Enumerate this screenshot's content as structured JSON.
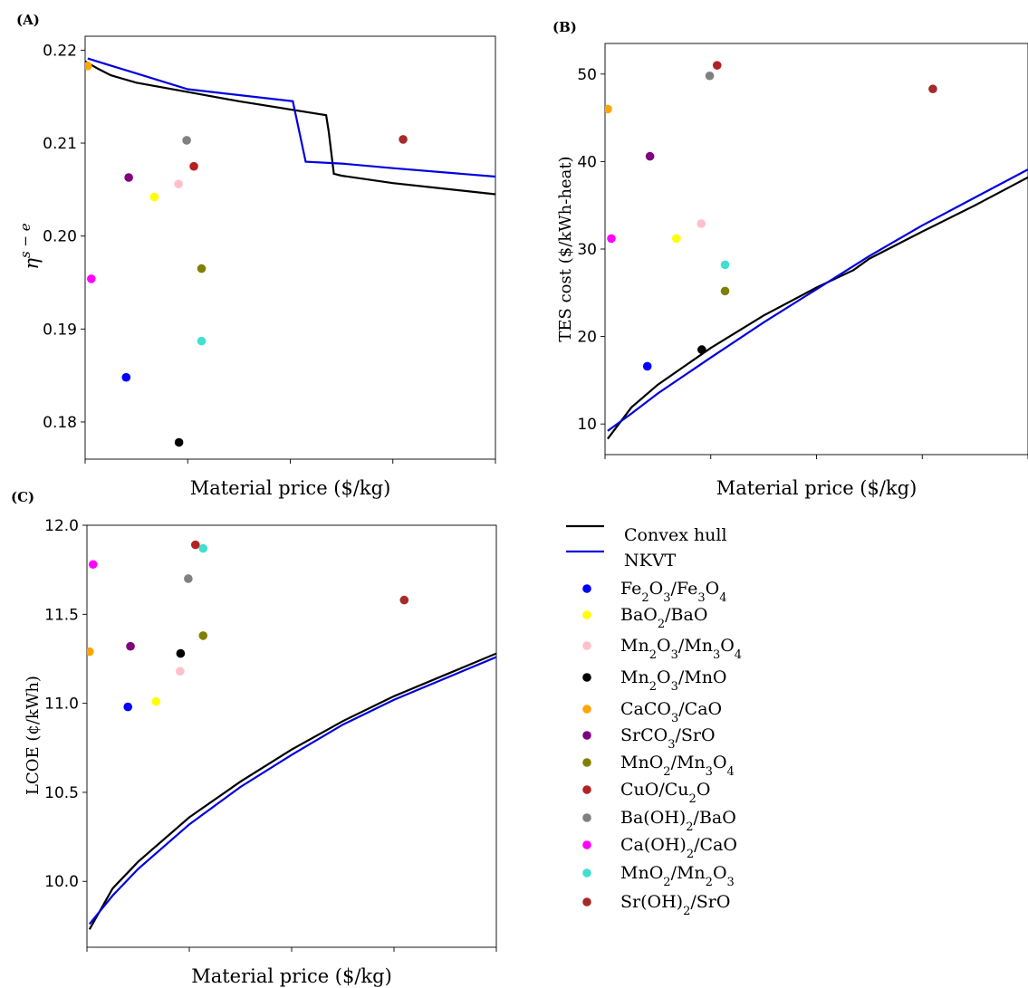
{
  "legend": {
    "lines": [
      {
        "label": "Convex hull",
        "color": "#000000"
      },
      {
        "label": "NKVT",
        "color": "#0000dd"
      }
    ],
    "materials": [
      {
        "key": "fe2o3",
        "parts": [
          [
            "Fe",
            ""
          ],
          [
            "2",
            "s"
          ],
          [
            "O",
            ""
          ],
          [
            "3",
            "s"
          ],
          [
            "/Fe",
            ""
          ],
          [
            "3",
            "s"
          ],
          [
            "O",
            ""
          ],
          [
            "4",
            "s"
          ]
        ],
        "color": "#0000ff"
      },
      {
        "key": "bao2",
        "parts": [
          [
            "BaO",
            ""
          ],
          [
            "2",
            "s"
          ],
          [
            "/BaO",
            ""
          ]
        ],
        "color": "#ffff00"
      },
      {
        "key": "mn2o3_mn3o4",
        "parts": [
          [
            "Mn",
            ""
          ],
          [
            "2",
            "s"
          ],
          [
            "O",
            ""
          ],
          [
            "3",
            "s"
          ],
          [
            "/Mn",
            ""
          ],
          [
            "3",
            "s"
          ],
          [
            "O",
            ""
          ],
          [
            "4",
            "s"
          ]
        ],
        "color": "#ffc0cb"
      },
      {
        "key": "mn2o3_mno",
        "parts": [
          [
            "Mn",
            ""
          ],
          [
            "2",
            "s"
          ],
          [
            "O",
            ""
          ],
          [
            "3",
            "s"
          ],
          [
            "/MnO",
            ""
          ]
        ],
        "color": "#000000"
      },
      {
        "key": "caco3",
        "parts": [
          [
            "CaC",
            ""
          ],
          [
            "O",
            ""
          ],
          [
            "3",
            "s"
          ],
          [
            "/CaO",
            ""
          ]
        ],
        "color": "#ffa500"
      },
      {
        "key": "srco3",
        "parts": [
          [
            "SrC",
            ""
          ],
          [
            "O",
            ""
          ],
          [
            "3",
            "s"
          ],
          [
            "/SrO",
            ""
          ]
        ],
        "color": "#800080"
      },
      {
        "key": "mno2_mn3o4",
        "parts": [
          [
            "MnO",
            ""
          ],
          [
            "2",
            "s"
          ],
          [
            "/Mn",
            ""
          ],
          [
            "3",
            "s"
          ],
          [
            "O",
            ""
          ],
          [
            "4",
            "s"
          ]
        ],
        "color": "#808000"
      },
      {
        "key": "cuo",
        "parts": [
          [
            "CuO/Cu",
            ""
          ],
          [
            "2",
            "s"
          ],
          [
            "O",
            ""
          ]
        ],
        "color": "#b22222"
      },
      {
        "key": "baoh2",
        "parts": [
          [
            "Ba(OH)",
            ""
          ],
          [
            "2",
            "s"
          ],
          [
            "/BaO",
            ""
          ]
        ],
        "color": "#808080"
      },
      {
        "key": "caoh2",
        "parts": [
          [
            "Ca(OH)",
            ""
          ],
          [
            "2",
            "s"
          ],
          [
            "/CaO",
            ""
          ]
        ],
        "color": "#ff00ff"
      },
      {
        "key": "mno2_mn2o3",
        "parts": [
          [
            "MnO",
            ""
          ],
          [
            "2",
            "s"
          ],
          [
            "/Mn",
            ""
          ],
          [
            "2",
            "s"
          ],
          [
            "O",
            ""
          ],
          [
            "3",
            "s"
          ]
        ],
        "color": "#40e0d0"
      },
      {
        "key": "sroh2",
        "parts": [
          [
            "Sr(OH)",
            ""
          ],
          [
            "2",
            "s"
          ],
          [
            "/SrO",
            ""
          ]
        ],
        "color": "#a52a2a"
      }
    ]
  },
  "chart_data": [
    {
      "panel": "(A)",
      "type": "scatter",
      "xlabel": "Material price ($/kg)",
      "ylabel": "η^{s−e}",
      "xlim": [
        0,
        8
      ],
      "ylim": [
        0.176,
        0.2215
      ],
      "x_tick_labels_shown": false,
      "yticks": [
        0.18,
        0.19,
        0.2,
        0.21,
        0.22
      ],
      "ytick_labels": [
        "0.18",
        "0.19",
        "0.20",
        "0.21",
        "0.22"
      ],
      "lines": [
        {
          "name": "Convex hull",
          "color": "#000000",
          "x": [
            0.0,
            0.25,
            0.5,
            1.0,
            2.0,
            3.0,
            4.7,
            4.75,
            4.85,
            5.0,
            6.0,
            8.0
          ],
          "y": [
            0.2188,
            0.218,
            0.2173,
            0.2165,
            0.2155,
            0.2145,
            0.213,
            0.2112,
            0.2067,
            0.2065,
            0.2057,
            0.2045
          ]
        },
        {
          "name": "NKVT",
          "color": "#0000dd",
          "x": [
            0.05,
            1.0,
            2.0,
            4.05,
            4.3,
            5.0,
            6.0,
            8.0
          ],
          "y": [
            0.2191,
            0.2175,
            0.2158,
            0.2145,
            0.208,
            0.2078,
            0.2073,
            0.2064
          ]
        },
        {
          "name": "",
          "color": "#000000",
          "x": [],
          "y": []
        }
      ],
      "points": [
        {
          "key": "fe2o3",
          "x": 0.8,
          "y": 0.1848
        },
        {
          "key": "bao2",
          "x": 1.35,
          "y": 0.2042
        },
        {
          "key": "mn2o3_mn3o4",
          "x": 1.82,
          "y": 0.2056
        },
        {
          "key": "mn2o3_mno",
          "x": 1.83,
          "y": 0.1778
        },
        {
          "key": "caco3",
          "x": 0.05,
          "y": 0.2183
        },
        {
          "key": "srco3",
          "x": 0.85,
          "y": 0.2063
        },
        {
          "key": "mno2_mn3o4",
          "x": 2.27,
          "y": 0.1965
        },
        {
          "key": "cuo",
          "x": 2.12,
          "y": 0.2075
        },
        {
          "key": "baoh2",
          "x": 1.98,
          "y": 0.2103
        },
        {
          "key": "caoh2",
          "x": 0.12,
          "y": 0.1954
        },
        {
          "key": "mno2_mn2o3",
          "x": 2.27,
          "y": 0.1887
        },
        {
          "key": "sroh2",
          "x": 6.2,
          "y": 0.2104
        }
      ]
    },
    {
      "panel": "(B)",
      "type": "scatter",
      "xlabel": "Material price ($/kg)",
      "ylabel": "TES cost ($/kWh-heat)",
      "xlim": [
        0,
        8
      ],
      "ylim": [
        6.5,
        53.5
      ],
      "x_tick_labels_shown": false,
      "yticks": [
        10,
        20,
        30,
        40,
        50
      ],
      "ytick_labels": [
        "10",
        "20",
        "30",
        "40",
        "50"
      ],
      "lines": [
        {
          "name": "Convex hull",
          "color": "#000000",
          "x": [
            0.05,
            0.5,
            1.0,
            2.0,
            3.0,
            4.0,
            4.7,
            5.0,
            6.0,
            7.0,
            8.0
          ],
          "y": [
            8.3,
            11.9,
            14.5,
            18.7,
            22.4,
            25.6,
            27.6,
            28.9,
            32.0,
            35.0,
            38.2
          ]
        },
        {
          "name": "NKVT",
          "color": "#0000dd",
          "x": [
            0.05,
            0.5,
            1.0,
            2.0,
            3.0,
            4.0,
            5.0,
            6.0,
            7.0,
            8.0
          ],
          "y": [
            9.2,
            11.2,
            13.5,
            17.6,
            21.6,
            25.4,
            29.2,
            32.7,
            35.9,
            39.1
          ]
        }
      ],
      "points": [
        {
          "key": "fe2o3",
          "x": 0.8,
          "y": 16.6
        },
        {
          "key": "bao2",
          "x": 1.35,
          "y": 31.2
        },
        {
          "key": "mn2o3_mn3o4",
          "x": 1.82,
          "y": 32.9
        },
        {
          "key": "mn2o3_mno",
          "x": 1.83,
          "y": 18.5
        },
        {
          "key": "caco3",
          "x": 0.05,
          "y": 46.0
        },
        {
          "key": "srco3",
          "x": 0.85,
          "y": 40.6
        },
        {
          "key": "mno2_mn3o4",
          "x": 2.27,
          "y": 25.2
        },
        {
          "key": "cuo",
          "x": 2.12,
          "y": 51.0
        },
        {
          "key": "baoh2",
          "x": 1.98,
          "y": 49.8
        },
        {
          "key": "caoh2",
          "x": 0.12,
          "y": 31.2
        },
        {
          "key": "mno2_mn2o3",
          "x": 2.27,
          "y": 28.2
        },
        {
          "key": "sroh2",
          "x": 6.2,
          "y": 48.3
        }
      ]
    },
    {
      "panel": "(C)",
      "type": "scatter",
      "xlabel": "Material price ($/kg)",
      "ylabel": "LCOE (¢/kWh)",
      "xlim": [
        0,
        8
      ],
      "ylim": [
        9.63,
        12.0
      ],
      "x_tick_labels_shown": false,
      "yticks": [
        10.0,
        10.5,
        11.0,
        11.5,
        12.0
      ],
      "ytick_labels": [
        "10.0",
        "10.5",
        "11.0",
        "11.5",
        "12.0"
      ],
      "lines": [
        {
          "name": "Convex hull",
          "color": "#000000",
          "x": [
            0.05,
            0.5,
            1.0,
            2.0,
            3.0,
            4.0,
            5.0,
            6.0,
            7.0,
            8.0
          ],
          "y": [
            9.73,
            9.96,
            10.11,
            10.36,
            10.56,
            10.74,
            10.9,
            11.04,
            11.16,
            11.28
          ]
        },
        {
          "name": "NKVT",
          "color": "#0000dd",
          "x": [
            0.05,
            0.5,
            1.0,
            2.0,
            3.0,
            4.0,
            5.0,
            6.0,
            7.0,
            8.0
          ],
          "y": [
            9.76,
            9.92,
            10.07,
            10.32,
            10.53,
            10.71,
            10.88,
            11.02,
            11.14,
            11.26
          ]
        }
      ],
      "points": [
        {
          "key": "fe2o3",
          "x": 0.8,
          "y": 10.98
        },
        {
          "key": "bao2",
          "x": 1.35,
          "y": 11.01
        },
        {
          "key": "mn2o3_mn3o4",
          "x": 1.82,
          "y": 11.18
        },
        {
          "key": "mn2o3_mno",
          "x": 1.83,
          "y": 11.28
        },
        {
          "key": "caco3",
          "x": 0.05,
          "y": 11.29
        },
        {
          "key": "srco3",
          "x": 0.85,
          "y": 11.32
        },
        {
          "key": "mno2_mn3o4",
          "x": 2.27,
          "y": 11.38
        },
        {
          "key": "cuo",
          "x": 2.12,
          "y": 11.89
        },
        {
          "key": "baoh2",
          "x": 1.98,
          "y": 11.7
        },
        {
          "key": "caoh2",
          "x": 0.12,
          "y": 11.78
        },
        {
          "key": "mno2_mn2o3",
          "x": 2.27,
          "y": 11.87
        },
        {
          "key": "sroh2",
          "x": 6.2,
          "y": 11.58
        }
      ]
    }
  ]
}
